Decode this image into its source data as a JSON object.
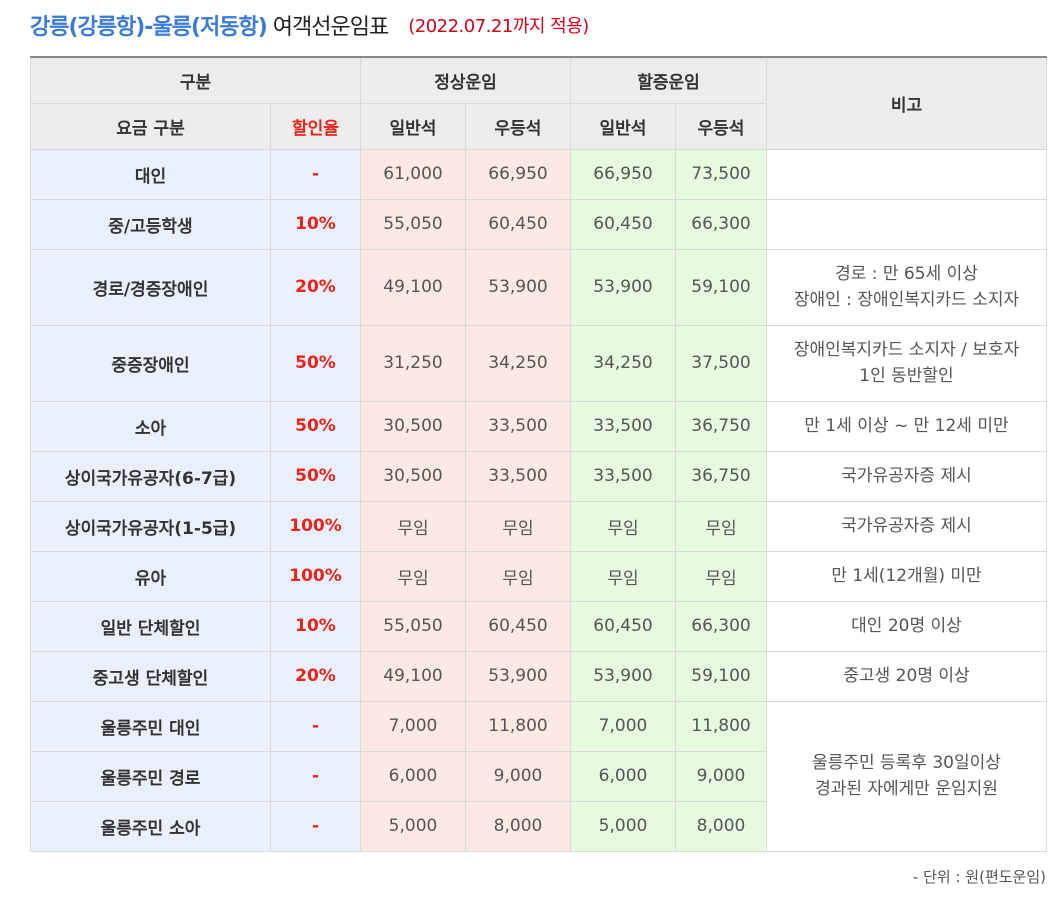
{
  "title": {
    "route": "강릉(강릉항)-울릉(저동항)",
    "main": "여객선운임표",
    "note": "(2022.07.21까지 적용)"
  },
  "headers": {
    "group": "구분",
    "normal_fare": "정상운임",
    "surcharge_fare": "할증운임",
    "remarks": "비고",
    "fare_type": "요금 구분",
    "discount_rate": "할인율",
    "general_seat": "일반석",
    "premium_seat": "우등석",
    "general_seat_2": "일반석",
    "premium_seat_2": "우등석"
  },
  "rows": [
    {
      "category": "대인",
      "rate": "-",
      "normal_general": "61,000",
      "normal_premium": "66,950",
      "surcharge_general": "66,950",
      "surcharge_premium": "73,500",
      "note": []
    },
    {
      "category": "중/고등학생",
      "rate": "10%",
      "normal_general": "55,050",
      "normal_premium": "60,450",
      "surcharge_general": "60,450",
      "surcharge_premium": "66,300",
      "note": []
    },
    {
      "category": "경로/경증장애인",
      "rate": "20%",
      "normal_general": "49,100",
      "normal_premium": "53,900",
      "surcharge_general": "53,900",
      "surcharge_premium": "59,100",
      "note": [
        "경로 : 만 65세 이상",
        "장애인 : 장애인복지카드 소지자"
      ]
    },
    {
      "category": "중증장애인",
      "rate": "50%",
      "normal_general": "31,250",
      "normal_premium": "34,250",
      "surcharge_general": "34,250",
      "surcharge_premium": "37,500",
      "note": [
        "장애인복지카드 소지자 / 보호자",
        "1인 동반할인"
      ]
    },
    {
      "category": "소아",
      "rate": "50%",
      "normal_general": "30,500",
      "normal_premium": "33,500",
      "surcharge_general": "33,500",
      "surcharge_premium": "36,750",
      "note": [
        "만 1세 이상 ~ 만 12세 미만"
      ]
    },
    {
      "category": "상이국가유공자(6-7급)",
      "rate": "50%",
      "normal_general": "30,500",
      "normal_premium": "33,500",
      "surcharge_general": "33,500",
      "surcharge_premium": "36,750",
      "note": [
        "국가유공자증 제시"
      ]
    },
    {
      "category": "상이국가유공자(1-5급)",
      "rate": "100%",
      "normal_general": "무임",
      "normal_premium": "무임",
      "surcharge_general": "무임",
      "surcharge_premium": "무임",
      "note": [
        "국가유공자증 제시"
      ]
    },
    {
      "category": "유아",
      "rate": "100%",
      "normal_general": "무임",
      "normal_premium": "무임",
      "surcharge_general": "무임",
      "surcharge_premium": "무임",
      "note": [
        "만 1세(12개월) 미만"
      ]
    },
    {
      "category": "일반 단체할인",
      "rate": "10%",
      "normal_general": "55,050",
      "normal_premium": "60,450",
      "surcharge_general": "60,450",
      "surcharge_premium": "66,300",
      "note": [
        "대인 20명 이상"
      ]
    },
    {
      "category": "중고생 단체할인",
      "rate": "20%",
      "normal_general": "49,100",
      "normal_premium": "53,900",
      "surcharge_general": "53,900",
      "surcharge_premium": "59,100",
      "note": [
        "중고생 20명 이상"
      ]
    },
    {
      "category": "울릉주민 대인",
      "rate": "-",
      "normal_general": "7,000",
      "normal_premium": "11,800",
      "surcharge_general": "7,000",
      "surcharge_premium": "11,800"
    },
    {
      "category": "울릉주민 경로",
      "rate": "-",
      "normal_general": "6,000",
      "normal_premium": "9,000",
      "surcharge_general": "6,000",
      "surcharge_premium": "9,000"
    },
    {
      "category": "울릉주민 소아",
      "rate": "-",
      "normal_general": "5,000",
      "normal_premium": "8,000",
      "surcharge_general": "5,000",
      "surcharge_premium": "8,000"
    }
  ],
  "resident_note": [
    "울릉주민 등록후 30일이상",
    "경과된 자에게만 운임지원"
  ],
  "unit_note": "- 단위 : 원(편도운임)",
  "colors": {
    "route_title": "#3a7bd5",
    "note_red": "#d0021b",
    "rate_red": "#e8231a",
    "header_bg": "#ececec",
    "category_bg": "#eaf0fb",
    "normal_fare_bg": "#fde9e4",
    "surcharge_fare_bg": "#e6fadf"
  }
}
